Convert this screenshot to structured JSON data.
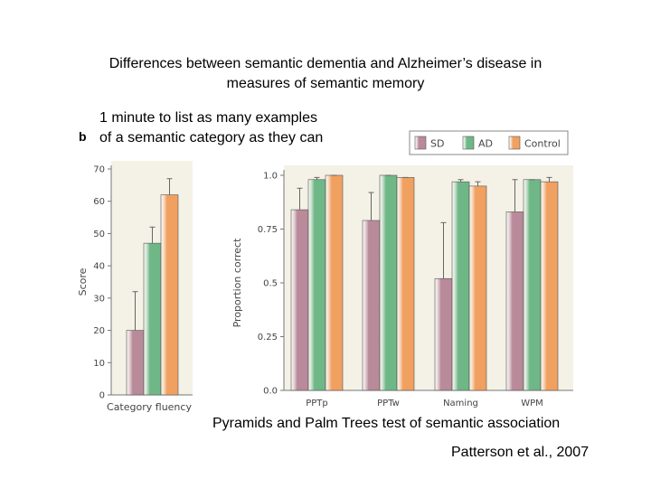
{
  "title_line1": "Differences between semantic dementia and Alzheimer’s disease in",
  "title_line2": "measures of semantic memory",
  "left_note_line1": "1 minute to list as many examples",
  "left_note_line2": "of a semantic category as they can",
  "panel_label": "b",
  "caption": "Pyramids and Palm Trees test of semantic association",
  "citation": "Patterson et al., 2007",
  "colors": {
    "SD": "#b98a9a",
    "AD": "#6fb787",
    "Control": "#f0a060",
    "panel_bg": "#f4f1e6",
    "error": "#666666"
  },
  "chart_data": [
    {
      "type": "bar",
      "categories": [
        "Category fluency"
      ],
      "series": [
        {
          "name": "SD",
          "values": [
            20
          ],
          "error": [
            32
          ]
        },
        {
          "name": "AD",
          "values": [
            47
          ],
          "error": [
            52
          ]
        },
        {
          "name": "Control",
          "values": [
            62
          ],
          "error": [
            67
          ]
        }
      ],
      "ylabel": "Score",
      "ylim": [
        0,
        70
      ],
      "yticks": [
        "0",
        "10",
        "20",
        "30",
        "40",
        "50",
        "60",
        "70"
      ],
      "yticks_values": [
        0,
        10,
        20,
        30,
        40,
        50,
        60,
        70
      ]
    },
    {
      "type": "bar",
      "categories": [
        "PPTp",
        "PPTw",
        "Naming",
        "WPM"
      ],
      "series": [
        {
          "name": "SD",
          "values": [
            0.84,
            0.79,
            0.52,
            0.83
          ],
          "error": [
            0.94,
            0.92,
            0.78,
            0.98
          ]
        },
        {
          "name": "AD",
          "values": [
            0.98,
            1.0,
            0.97,
            0.98
          ],
          "error": [
            0.99,
            1.0,
            0.98,
            0.98
          ]
        },
        {
          "name": "Control",
          "values": [
            1.0,
            0.99,
            0.95,
            0.97
          ],
          "error": [
            1.0,
            0.99,
            0.97,
            0.99
          ]
        }
      ],
      "ylabel": "Proportion correct",
      "ylim": [
        0,
        1.0
      ],
      "yticks": [
        "0.0",
        "0.25",
        "0.5",
        "0.75",
        "1.0"
      ],
      "yticks_values": [
        0,
        0.25,
        0.5,
        0.75,
        1.0
      ],
      "legend": [
        "SD",
        "AD",
        "Control"
      ],
      "legend_position": "top-right"
    }
  ]
}
